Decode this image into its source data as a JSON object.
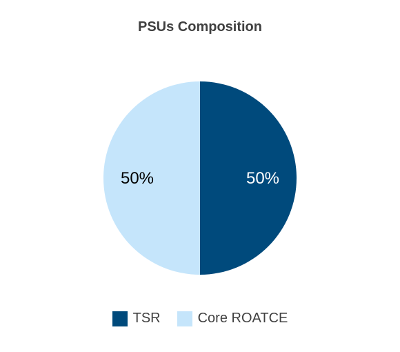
{
  "chart_data": {
    "type": "pie",
    "title": "PSUs Composition",
    "slices": [
      {
        "name": "TSR",
        "value": 50,
        "label": "50%",
        "color": "#004a7c",
        "label_color": "#ffffff"
      },
      {
        "name": "Core ROATCE",
        "value": 50,
        "label": "50%",
        "color": "#c5e5fb",
        "label_color": "#000000"
      }
    ],
    "legend_position": "bottom"
  }
}
